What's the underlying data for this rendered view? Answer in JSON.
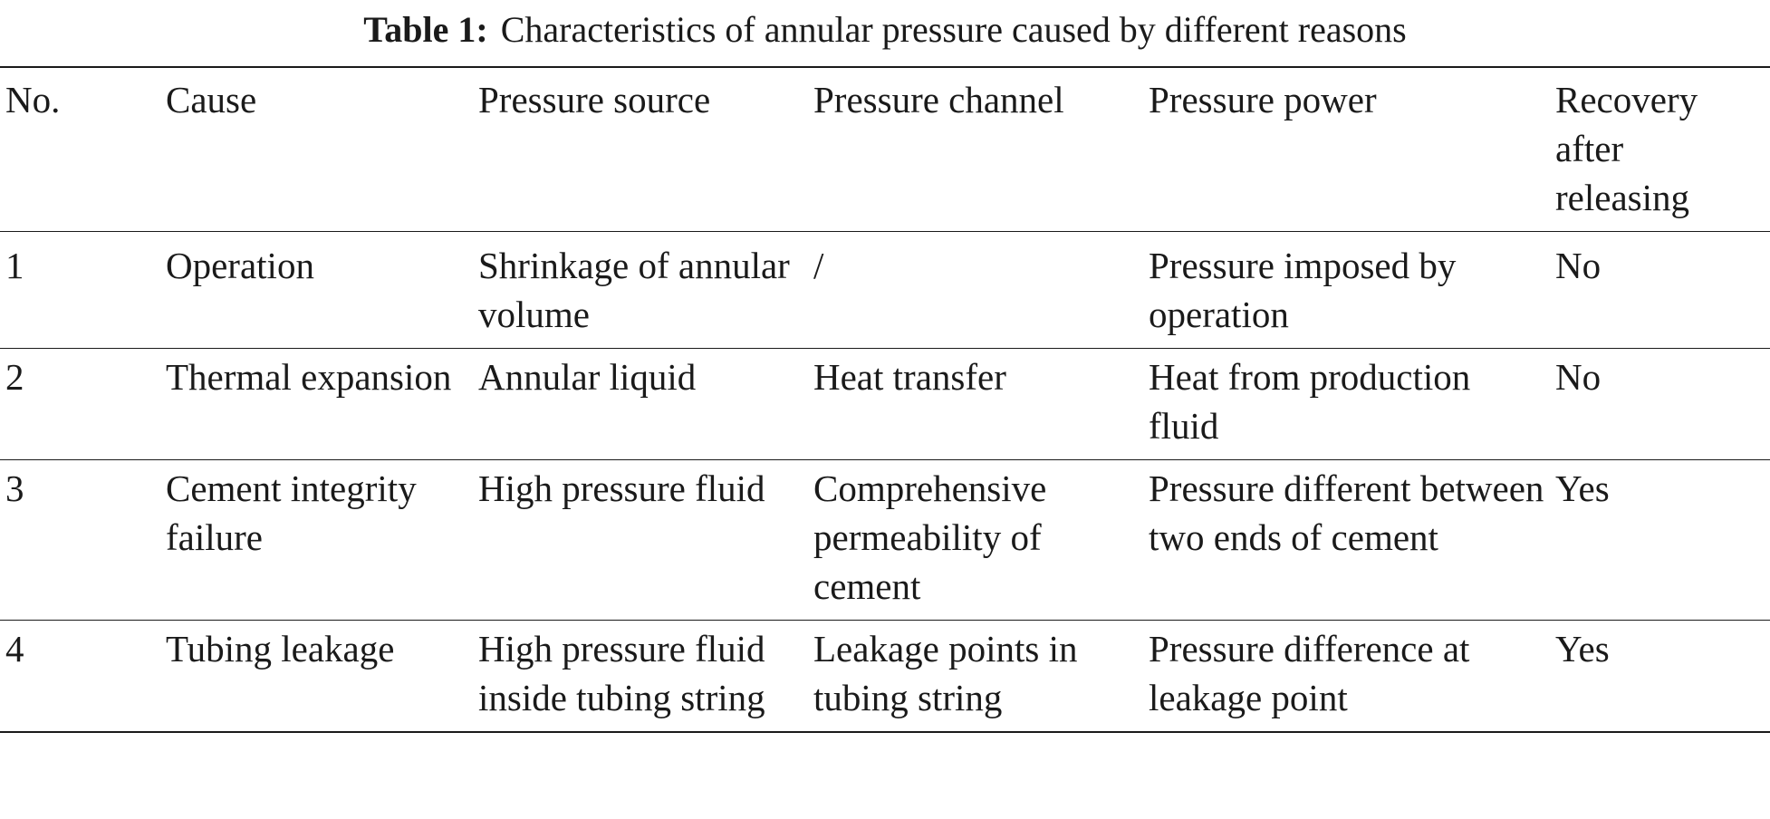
{
  "caption": {
    "label": "Table 1:",
    "text": "Characteristics of annular pressure caused by different reasons"
  },
  "table": {
    "headers": [
      "No.",
      "Cause",
      "Pressure source",
      "Pressure channel",
      "Pressure power",
      "Recovery after releasing"
    ],
    "rows": [
      [
        "1",
        "Operation",
        "Shrinkage of annular volume",
        "/",
        "Pressure imposed by operation",
        "No"
      ],
      [
        "2",
        "Thermal expansion",
        "Annular liquid",
        "Heat transfer",
        "Heat from production fluid",
        "No"
      ],
      [
        "3",
        "Cement integrity failure",
        "High pressure fluid",
        "Comprehensive permeability of cement",
        "Pressure different between two ends of cement",
        "Yes"
      ],
      [
        "4",
        "Tubing leakage",
        "High pressure fluid inside tubing string",
        "Leakage points in tubing string",
        "Pressure difference at leakage point",
        "Yes"
      ]
    ]
  }
}
